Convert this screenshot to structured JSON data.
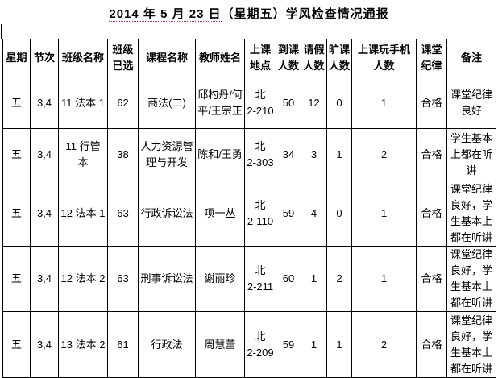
{
  "title": {
    "date": "2014 年 5 月 23 日",
    "rest": "（星期五）学风检查情况通报"
  },
  "colors": {
    "spellcheck_underline": "#993399",
    "border": "#000000",
    "background": "#ffffff"
  },
  "table": {
    "headers": [
      "星期",
      "节次",
      "班级名称",
      "班级已选",
      "课程名称",
      "教师姓名",
      "上课地点",
      "到课人数",
      "请假人数",
      "旷课人数",
      "上课玩手机人数",
      "课堂纪律",
      "备注"
    ],
    "rows": [
      [
        "五",
        "3,4",
        "11 法本 1",
        "62",
        "商法(二)",
        "邱杓丹/何平/王宗正",
        "北\n2-210",
        "50",
        "12",
        "0",
        "1",
        "合格",
        "课堂纪律良好"
      ],
      [
        "五",
        "3,4",
        "11 行管本",
        "38",
        "人力资源管理与开发",
        "陈和/王勇",
        "北\n2-303",
        "34",
        "3",
        "1",
        "2",
        "合格",
        "学生基本上都在听讲"
      ],
      [
        "五",
        "3,4",
        "12 法本 1",
        "63",
        "行政诉讼法",
        "项一丛",
        "北\n2-110",
        "59",
        "4",
        "0",
        "1",
        "合格",
        "课堂纪律良好，学生基本上都在听讲"
      ],
      [
        "五",
        "3,4",
        "12 法本 2",
        "63",
        "刑事诉讼法",
        "谢丽珍",
        "北\n2-211",
        "60",
        "1",
        "2",
        "1",
        "合格",
        "课堂纪律良好，学生基本上都在听讲"
      ],
      [
        "五",
        "3,4",
        "13 法本 2",
        "61",
        "行政法",
        "周慧蕾",
        "北\n2-209",
        "59",
        "1",
        "1",
        "2",
        "合格",
        "课堂纪律良好，学生基本上都在听讲"
      ]
    ]
  }
}
